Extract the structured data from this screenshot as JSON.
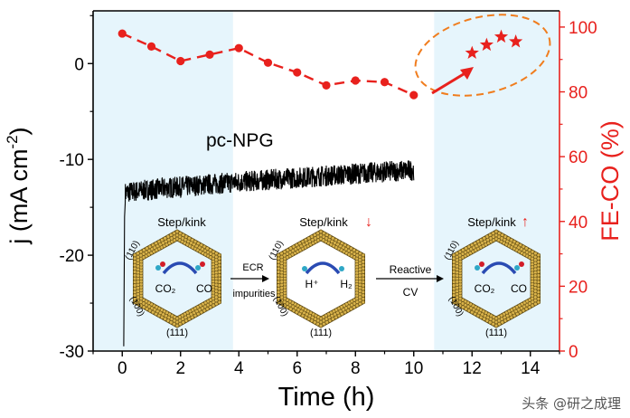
{
  "chart_data": {
    "type": "line",
    "xlabel": "Time (h)",
    "ylabel_left": "j (mA cm⁻²)",
    "ylabel_left_main": "j (mA cm",
    "ylabel_left_sup": "-2",
    "ylabel_left_close": ")",
    "ylabel_right": "FE-CO (%)",
    "xlim": [
      -1,
      15
    ],
    "ylim_left": [
      -30,
      5.5
    ],
    "ylim_right": [
      0,
      105
    ],
    "xticks": [
      0,
      2,
      4,
      6,
      8,
      10,
      12,
      14
    ],
    "yticks_left": [
      0,
      -10,
      -20,
      -30
    ],
    "yticks_right": [
      0,
      20,
      40,
      60,
      80,
      100
    ],
    "shaded_regions": [
      [
        -1,
        3.8
      ],
      [
        10.7,
        15
      ]
    ],
    "series": [
      {
        "name": "FE-CO",
        "axis": "right",
        "marker": "circle",
        "color": "#e8211d",
        "x": [
          0,
          1,
          2,
          3,
          4,
          5,
          6,
          7,
          8,
          9,
          10
        ],
        "y": [
          98,
          94,
          89.5,
          91.5,
          93.5,
          89,
          86,
          82,
          83.5,
          83,
          79
        ]
      },
      {
        "name": "FE-CO after reactive CV",
        "axis": "right",
        "marker": "star",
        "color": "#e8211d",
        "x": [
          12,
          12.5,
          13,
          13.5
        ],
        "y": [
          92,
          94.5,
          97,
          95.5
        ]
      },
      {
        "name": "pc-NPG",
        "axis": "left",
        "color": "#000000",
        "t_start": 0.1,
        "t_end": 10,
        "j_start": -13.5,
        "j_end": -11.1,
        "noise_amplitude": 1.1,
        "initial_spike": -29.5
      }
    ],
    "annotations": {
      "series_label": "pc-NPG",
      "inset_labels": {
        "step_kink": "Step/kink",
        "down_arrow": "↓",
        "up_arrow": "↑",
        "face_110": "(110)",
        "face_100": "(100)",
        "face_111": "(111)",
        "co2": "CO₂",
        "co": "CO",
        "h_plus": "H⁺",
        "h2": "H₂",
        "ecr_impurities_1": "ECR",
        "ecr_impurities_2": "impurities",
        "reactive_cv_1": "Reactive",
        "reactive_cv_2": "CV"
      }
    }
  },
  "watermark": "头条 @研之成理",
  "colors": {
    "red": "#e8211d",
    "shade": "#e6f5fc",
    "ellipse": "#f07d1e",
    "gold": "#b5912e",
    "gold_dark": "#5e4a14",
    "blue": "#2a4bb3",
    "co2_dot": "#2fa7c6",
    "o_dot": "#d21d28"
  }
}
